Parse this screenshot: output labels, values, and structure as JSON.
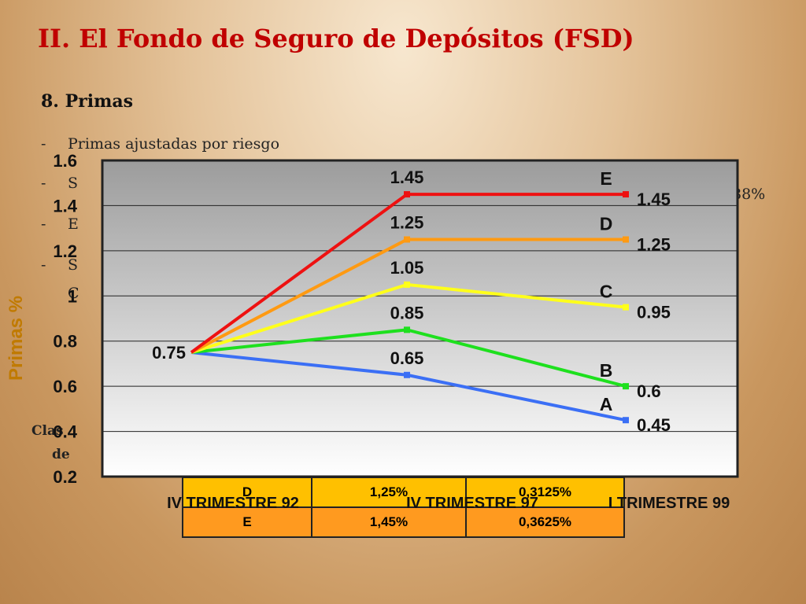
{
  "slide": {
    "title": "II. El Fondo de Seguro de Depósitos (FSD)",
    "section": "8. Primas",
    "bullets": [
      {
        "dash": "-",
        "text": "Primas ajustadas por riesgo"
      },
      {
        "dash": "-",
        "text": "S"
      },
      {
        "dash": "-",
        "text": "E"
      },
      {
        "dash": "-",
        "text": "S"
      }
    ],
    "fragments": {
      "pct": "88%",
      "c_letter": "C",
      "clas": "Clas",
      "de": "de"
    },
    "table": {
      "rows": [
        {
          "class": "D",
          "rate": "1,25%",
          "quarterly": "0,3125%"
        },
        {
          "class": "E",
          "rate": "1,45%",
          "quarterly": "0,3625%"
        }
      ]
    }
  },
  "chart_data": {
    "type": "line",
    "ylabel": "Primas %",
    "ylim": [
      0.2,
      1.6
    ],
    "y_ticks": [
      "0.2",
      "0.4",
      "0.6",
      "0.8",
      "1",
      "1.2",
      "1.4",
      "1.6"
    ],
    "categories": [
      "IV TRIMESTRE 92",
      "IV TRIMESTRE 97",
      "I TRIMESTRE 99"
    ],
    "shared_start_label": "0.75",
    "series": [
      {
        "name": "A",
        "values": [
          0.75,
          0.65,
          0.45
        ],
        "labels": [
          "",
          "0.65",
          "0.45"
        ],
        "color": "#3b6ff5"
      },
      {
        "name": "B",
        "values": [
          0.75,
          0.85,
          0.6
        ],
        "labels": [
          "",
          "0.85",
          "0.6"
        ],
        "color": "#1ee01e"
      },
      {
        "name": "C",
        "values": [
          0.75,
          1.05,
          0.95
        ],
        "labels": [
          "",
          "1.05",
          "0.95"
        ],
        "color": "#ffff1a"
      },
      {
        "name": "D",
        "values": [
          0.75,
          1.25,
          1.25
        ],
        "labels": [
          "",
          "1.25",
          "1.25"
        ],
        "color": "#ff9a12"
      },
      {
        "name": "E",
        "values": [
          0.75,
          1.45,
          1.45
        ],
        "labels": [
          "",
          "1.45",
          "1.45"
        ],
        "color": "#ee1111"
      }
    ],
    "grid": true,
    "colors": {
      "plot_bg_top": "#9c9c9c",
      "plot_bg_bottom": "#ffffff",
      "frame": "#222222",
      "gridline": "#222222"
    }
  }
}
